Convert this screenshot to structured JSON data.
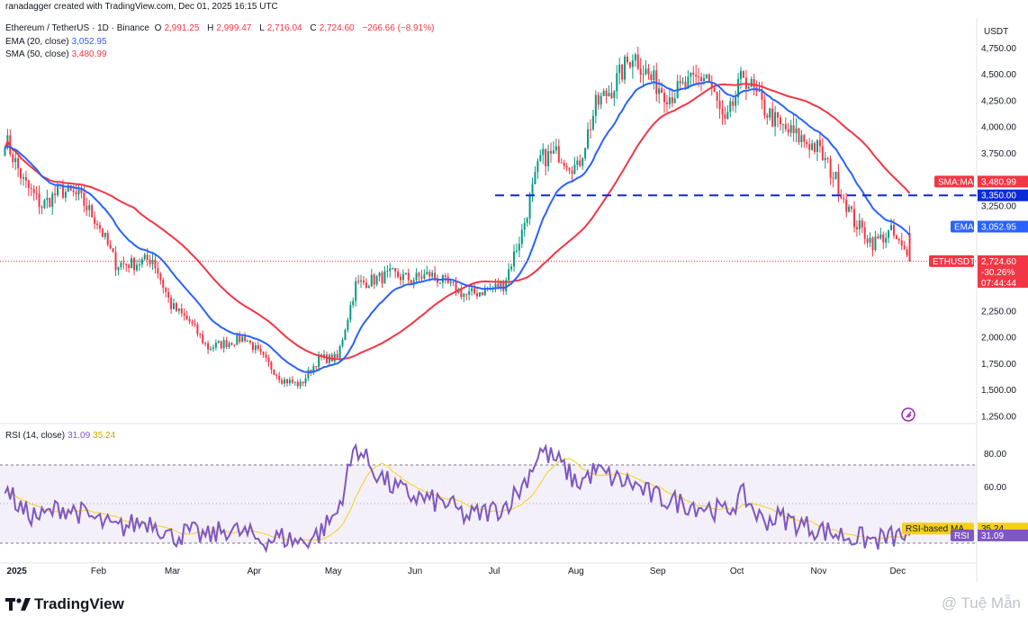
{
  "header": {
    "creator": "ranadagger created with TradingView.com, Dec 01, 2025 16:15 UTC",
    "symbol": "Ethereum / TetherUS · 1D · Binance",
    "ohlc": {
      "o_label": "O",
      "o": "2,991.25",
      "h_label": "H",
      "h": "2,999.47",
      "l_label": "L",
      "l": "2,716.04",
      "c_label": "C",
      "c": "2,724.60",
      "change": "−266.66 (−8.91%)"
    },
    "ema_label": "EMA (20, close)",
    "ema_value": "3,052.95",
    "sma_label": "SMA (50, close)",
    "sma_value": "3,480.99",
    "rsi_label": "RSI (14, close)",
    "rsi_value": "31.09",
    "rsi_ma_value": "35.24"
  },
  "colors": {
    "up": "#089981",
    "down": "#f23645",
    "ema": "#2962ff",
    "sma": "#f23645",
    "rsi": "#7e57c2",
    "rsi_ma": "#f5d01a",
    "hline": "#0a2bd6"
  },
  "axis": {
    "currency": "USDT",
    "price_ticks": [
      "4,750.00",
      "4,500.00",
      "4,250.00",
      "4,000.00",
      "3,750.00",
      "3,250.00",
      "2,250.00",
      "2,000.00",
      "1,750.00",
      "1,500.00",
      "1,250.00"
    ],
    "rsi_ticks": [
      "80.00",
      "60.00"
    ],
    "month_labels": [
      "2025",
      "Feb",
      "Mar",
      "Apr",
      "May",
      "Jun",
      "Jul",
      "Aug",
      "Sep",
      "Oct",
      "Nov",
      "Dec"
    ]
  },
  "price_tags": {
    "sma": {
      "name": "SMA:MA",
      "value": "3,480.99"
    },
    "hline": {
      "value": "3,350.00"
    },
    "ema": {
      "name": "EMA",
      "value": "3,052.95"
    },
    "last": {
      "name": "ETHUSDT",
      "value": "2,724.60",
      "change": "-30.26%",
      "countdown": "07:44:44"
    },
    "rsi_ma": {
      "name": "RSI-based MA",
      "value": "35.24"
    },
    "rsi": {
      "name": "RSI",
      "value": "31.09"
    }
  },
  "footer": {
    "brand": "TradingView",
    "watermark": "@ Tuệ Mẫn"
  },
  "chart_data": {
    "type": "candlestick",
    "title": "Ethereum / TetherUS · 1D · Binance",
    "x_range": [
      "2024-12-27",
      "2025-12-01"
    ],
    "y_range": [
      1250,
      4950
    ],
    "y_scale": "linear",
    "grid": false,
    "horizontal_line": 3350,
    "candles_approx_weekly": {
      "dates": [
        "2024-12-27",
        "2025-01-03",
        "2025-01-10",
        "2025-01-17",
        "2025-01-24",
        "2025-01-31",
        "2025-02-07",
        "2025-02-14",
        "2025-02-21",
        "2025-02-28",
        "2025-03-07",
        "2025-03-14",
        "2025-03-21",
        "2025-03-28",
        "2025-04-04",
        "2025-04-11",
        "2025-04-18",
        "2025-04-25",
        "2025-05-02",
        "2025-05-09",
        "2025-05-16",
        "2025-05-23",
        "2025-05-30",
        "2025-06-06",
        "2025-06-13",
        "2025-06-20",
        "2025-06-27",
        "2025-07-04",
        "2025-07-11",
        "2025-07-18",
        "2025-07-25",
        "2025-08-01",
        "2025-08-08",
        "2025-08-15",
        "2025-08-22",
        "2025-08-29",
        "2025-09-05",
        "2025-09-12",
        "2025-09-19",
        "2025-09-26",
        "2025-10-03",
        "2025-10-10",
        "2025-10-17",
        "2025-10-24",
        "2025-10-31",
        "2025-11-07",
        "2025-11-14",
        "2025-11-21",
        "2025-11-28",
        "2025-12-01"
      ],
      "close": [
        3900,
        3480,
        3250,
        3400,
        3340,
        3100,
        2700,
        2700,
        2750,
        2300,
        2150,
        1900,
        1950,
        2000,
        1800,
        1600,
        1550,
        1800,
        1800,
        2500,
        2550,
        2600,
        2550,
        2600,
        2500,
        2400,
        2450,
        2500,
        3000,
        3700,
        3750,
        3600,
        4200,
        4400,
        4700,
        4450,
        4300,
        4400,
        4500,
        4000,
        4500,
        4200,
        4000,
        3900,
        3800,
        3500,
        3100,
        2900,
        3000,
        2724.6
      ]
    },
    "series": [
      {
        "name": "EMA (20, close)",
        "last": 3052.95
      },
      {
        "name": "SMA (50, close)",
        "last": 3480.99
      }
    ],
    "rsi": {
      "name": "RSI (14, close)",
      "y_range": [
        20,
        90
      ],
      "bands": [
        70,
        30
      ],
      "last": 31.09,
      "ma_last": 35.24,
      "weekly": [
        60,
        45,
        42,
        48,
        45,
        40,
        35,
        38,
        40,
        30,
        33,
        30,
        35,
        32,
        28,
        30,
        27,
        32,
        45,
        85,
        70,
        60,
        55,
        52,
        50,
        42,
        45,
        48,
        60,
        82,
        75,
        62,
        70,
        65,
        62,
        55,
        52,
        50,
        48,
        45,
        55,
        40,
        42,
        38,
        35,
        32,
        30,
        28,
        30,
        31.09
      ]
    }
  }
}
